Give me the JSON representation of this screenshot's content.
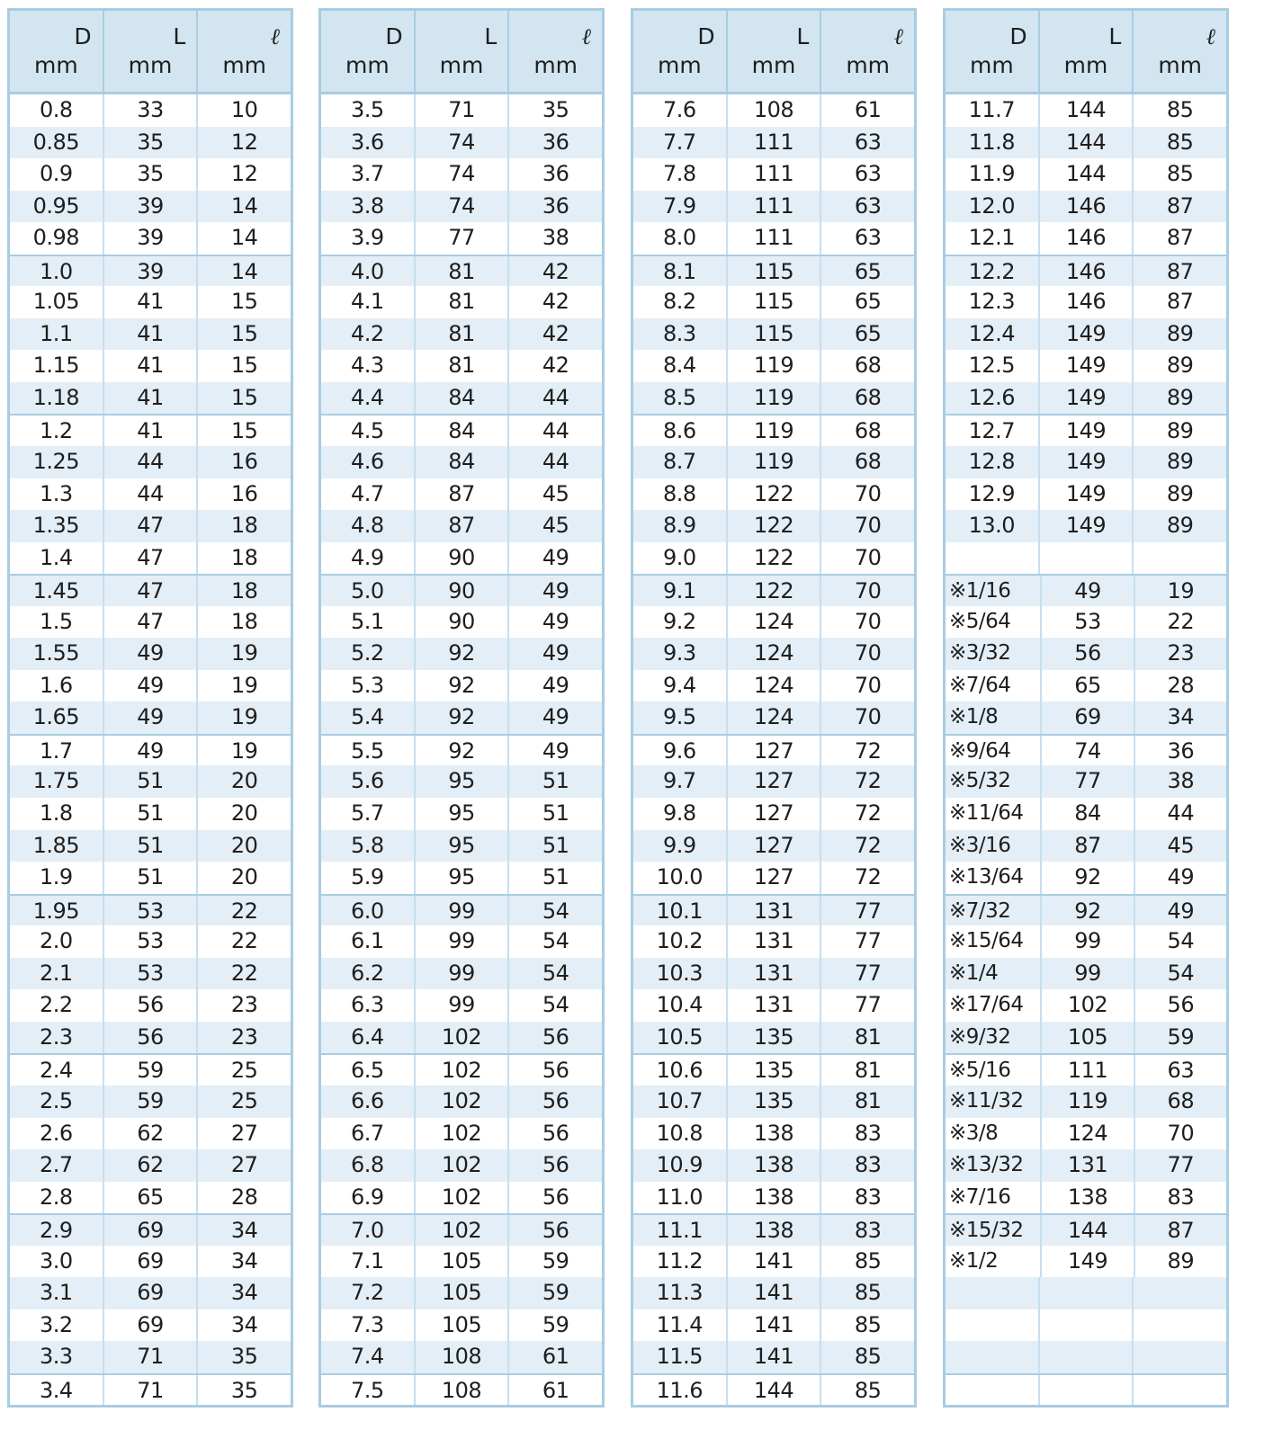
{
  "headers": [
    {
      "symbol": "D",
      "unit": "mm"
    },
    {
      "symbol": "L",
      "unit": "mm"
    },
    {
      "symbol": "ℓ",
      "unit": "mm"
    }
  ],
  "mark_symbol": "※",
  "colors": {
    "border": "#a8cde3",
    "header_bg": "#d3e5f1",
    "alt_row_bg": "#e4eef6",
    "mark": "#8ccbd6"
  },
  "tables": [
    [
      [
        "0.8",
        "33",
        "10"
      ],
      [
        "0.85",
        "35",
        "12"
      ],
      [
        "0.9",
        "35",
        "12"
      ],
      [
        "0.95",
        "39",
        "14"
      ],
      [
        "0.98",
        "39",
        "14"
      ],
      [
        "1.0",
        "39",
        "14"
      ],
      [
        "1.05",
        "41",
        "15"
      ],
      [
        "1.1",
        "41",
        "15"
      ],
      [
        "1.15",
        "41",
        "15"
      ],
      [
        "1.18",
        "41",
        "15"
      ],
      [
        "1.2",
        "41",
        "15"
      ],
      [
        "1.25",
        "44",
        "16"
      ],
      [
        "1.3",
        "44",
        "16"
      ],
      [
        "1.35",
        "47",
        "18"
      ],
      [
        "1.4",
        "47",
        "18"
      ],
      [
        "1.45",
        "47",
        "18"
      ],
      [
        "1.5",
        "47",
        "18"
      ],
      [
        "1.55",
        "49",
        "19"
      ],
      [
        "1.6",
        "49",
        "19"
      ],
      [
        "1.65",
        "49",
        "19"
      ],
      [
        "1.7",
        "49",
        "19"
      ],
      [
        "1.75",
        "51",
        "20"
      ],
      [
        "1.8",
        "51",
        "20"
      ],
      [
        "1.85",
        "51",
        "20"
      ],
      [
        "1.9",
        "51",
        "20"
      ],
      [
        "1.95",
        "53",
        "22"
      ],
      [
        "2.0",
        "53",
        "22"
      ],
      [
        "2.1",
        "53",
        "22"
      ],
      [
        "2.2",
        "56",
        "23"
      ],
      [
        "2.3",
        "56",
        "23"
      ],
      [
        "2.4",
        "59",
        "25"
      ],
      [
        "2.5",
        "59",
        "25"
      ],
      [
        "2.6",
        "62",
        "27"
      ],
      [
        "2.7",
        "62",
        "27"
      ],
      [
        "2.8",
        "65",
        "28"
      ],
      [
        "2.9",
        "69",
        "34"
      ],
      [
        "3.0",
        "69",
        "34"
      ],
      [
        "3.1",
        "69",
        "34"
      ],
      [
        "3.2",
        "69",
        "34"
      ],
      [
        "3.3",
        "71",
        "35"
      ],
      [
        "3.4",
        "71",
        "35"
      ]
    ],
    [
      [
        "3.5",
        "71",
        "35"
      ],
      [
        "3.6",
        "74",
        "36"
      ],
      [
        "3.7",
        "74",
        "36"
      ],
      [
        "3.8",
        "74",
        "36"
      ],
      [
        "3.9",
        "77",
        "38"
      ],
      [
        "4.0",
        "81",
        "42"
      ],
      [
        "4.1",
        "81",
        "42"
      ],
      [
        "4.2",
        "81",
        "42"
      ],
      [
        "4.3",
        "81",
        "42"
      ],
      [
        "4.4",
        "84",
        "44"
      ],
      [
        "4.5",
        "84",
        "44"
      ],
      [
        "4.6",
        "84",
        "44"
      ],
      [
        "4.7",
        "87",
        "45"
      ],
      [
        "4.8",
        "87",
        "45"
      ],
      [
        "4.9",
        "90",
        "49"
      ],
      [
        "5.0",
        "90",
        "49"
      ],
      [
        "5.1",
        "90",
        "49"
      ],
      [
        "5.2",
        "92",
        "49"
      ],
      [
        "5.3",
        "92",
        "49"
      ],
      [
        "5.4",
        "92",
        "49"
      ],
      [
        "5.5",
        "92",
        "49"
      ],
      [
        "5.6",
        "95",
        "51"
      ],
      [
        "5.7",
        "95",
        "51"
      ],
      [
        "5.8",
        "95",
        "51"
      ],
      [
        "5.9",
        "95",
        "51"
      ],
      [
        "6.0",
        "99",
        "54"
      ],
      [
        "6.1",
        "99",
        "54"
      ],
      [
        "6.2",
        "99",
        "54"
      ],
      [
        "6.3",
        "99",
        "54"
      ],
      [
        "6.4",
        "102",
        "56"
      ],
      [
        "6.5",
        "102",
        "56"
      ],
      [
        "6.6",
        "102",
        "56"
      ],
      [
        "6.7",
        "102",
        "56"
      ],
      [
        "6.8",
        "102",
        "56"
      ],
      [
        "6.9",
        "102",
        "56"
      ],
      [
        "7.0",
        "102",
        "56"
      ],
      [
        "7.1",
        "105",
        "59"
      ],
      [
        "7.2",
        "105",
        "59"
      ],
      [
        "7.3",
        "105",
        "59"
      ],
      [
        "7.4",
        "108",
        "61"
      ],
      [
        "7.5",
        "108",
        "61"
      ]
    ],
    [
      [
        "7.6",
        "108",
        "61"
      ],
      [
        "7.7",
        "111",
        "63"
      ],
      [
        "7.8",
        "111",
        "63"
      ],
      [
        "7.9",
        "111",
        "63"
      ],
      [
        "8.0",
        "111",
        "63"
      ],
      [
        "8.1",
        "115",
        "65"
      ],
      [
        "8.2",
        "115",
        "65"
      ],
      [
        "8.3",
        "115",
        "65"
      ],
      [
        "8.4",
        "119",
        "68"
      ],
      [
        "8.5",
        "119",
        "68"
      ],
      [
        "8.6",
        "119",
        "68"
      ],
      [
        "8.7",
        "119",
        "68"
      ],
      [
        "8.8",
        "122",
        "70"
      ],
      [
        "8.9",
        "122",
        "70"
      ],
      [
        "9.0",
        "122",
        "70"
      ],
      [
        "9.1",
        "122",
        "70"
      ],
      [
        "9.2",
        "124",
        "70"
      ],
      [
        "9.3",
        "124",
        "70"
      ],
      [
        "9.4",
        "124",
        "70"
      ],
      [
        "9.5",
        "124",
        "70"
      ],
      [
        "9.6",
        "127",
        "72"
      ],
      [
        "9.7",
        "127",
        "72"
      ],
      [
        "9.8",
        "127",
        "72"
      ],
      [
        "9.9",
        "127",
        "72"
      ],
      [
        "10.0",
        "127",
        "72"
      ],
      [
        "10.1",
        "131",
        "77"
      ],
      [
        "10.2",
        "131",
        "77"
      ],
      [
        "10.3",
        "131",
        "77"
      ],
      [
        "10.4",
        "131",
        "77"
      ],
      [
        "10.5",
        "135",
        "81"
      ],
      [
        "10.6",
        "135",
        "81"
      ],
      [
        "10.7",
        "135",
        "81"
      ],
      [
        "10.8",
        "138",
        "83"
      ],
      [
        "10.9",
        "138",
        "83"
      ],
      [
        "11.0",
        "138",
        "83"
      ],
      [
        "11.1",
        "138",
        "83"
      ],
      [
        "11.2",
        "141",
        "85"
      ],
      [
        "11.3",
        "141",
        "85"
      ],
      [
        "11.4",
        "141",
        "85"
      ],
      [
        "11.5",
        "141",
        "85"
      ],
      [
        "11.6",
        "144",
        "85"
      ]
    ],
    [
      [
        "11.7",
        "144",
        "85"
      ],
      [
        "11.8",
        "144",
        "85"
      ],
      [
        "11.9",
        "144",
        "85"
      ],
      [
        "12.0",
        "146",
        "87"
      ],
      [
        "12.1",
        "146",
        "87"
      ],
      [
        "12.2",
        "146",
        "87"
      ],
      [
        "12.3",
        "146",
        "87"
      ],
      [
        "12.4",
        "149",
        "89"
      ],
      [
        "12.5",
        "149",
        "89"
      ],
      [
        "12.6",
        "149",
        "89"
      ],
      [
        "12.7",
        "149",
        "89"
      ],
      [
        "12.8",
        "149",
        "89"
      ],
      [
        "12.9",
        "149",
        "89"
      ],
      [
        "13.0",
        "149",
        "89"
      ],
      [
        "",
        "",
        ""
      ],
      [
        "※1/16",
        "49",
        "19"
      ],
      [
        "※5/64",
        "53",
        "22"
      ],
      [
        "※3/32",
        "56",
        "23"
      ],
      [
        "※7/64",
        "65",
        "28"
      ],
      [
        "※1/8",
        "69",
        "34"
      ],
      [
        "※9/64",
        "74",
        "36"
      ],
      [
        "※5/32",
        "77",
        "38"
      ],
      [
        "※11/64",
        "84",
        "44"
      ],
      [
        "※3/16",
        "87",
        "45"
      ],
      [
        "※13/64",
        "92",
        "49"
      ],
      [
        "※7/32",
        "92",
        "49"
      ],
      [
        "※15/64",
        "99",
        "54"
      ],
      [
        "※1/4",
        "99",
        "54"
      ],
      [
        "※17/64",
        "102",
        "56"
      ],
      [
        "※9/32",
        "105",
        "59"
      ],
      [
        "※5/16",
        "111",
        "63"
      ],
      [
        "※11/32",
        "119",
        "68"
      ],
      [
        "※3/8",
        "124",
        "70"
      ],
      [
        "※13/32",
        "131",
        "77"
      ],
      [
        "※7/16",
        "138",
        "83"
      ],
      [
        "※15/32",
        "144",
        "87"
      ],
      [
        "※1/2",
        "149",
        "89"
      ],
      [
        "",
        "",
        ""
      ],
      [
        "",
        "",
        ""
      ],
      [
        "",
        "",
        ""
      ],
      [
        "",
        "",
        ""
      ]
    ]
  ]
}
